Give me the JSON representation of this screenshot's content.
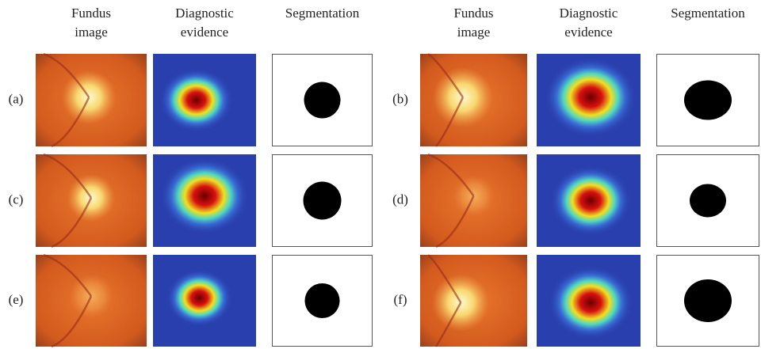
{
  "left_group": {
    "headers": [
      [
        "Fundus",
        "image"
      ],
      [
        "Diagnostic",
        "evidence"
      ],
      [
        "Segmentation"
      ]
    ],
    "rows": [
      "(a)",
      "(c)",
      "(e)"
    ]
  },
  "right_group": {
    "headers": [
      [
        "Fundus",
        "image"
      ],
      [
        "Diagnostic",
        "evidence"
      ],
      [
        "Segmentation"
      ]
    ],
    "rows": [
      "(b)",
      "(d)",
      "(f)"
    ]
  }
}
